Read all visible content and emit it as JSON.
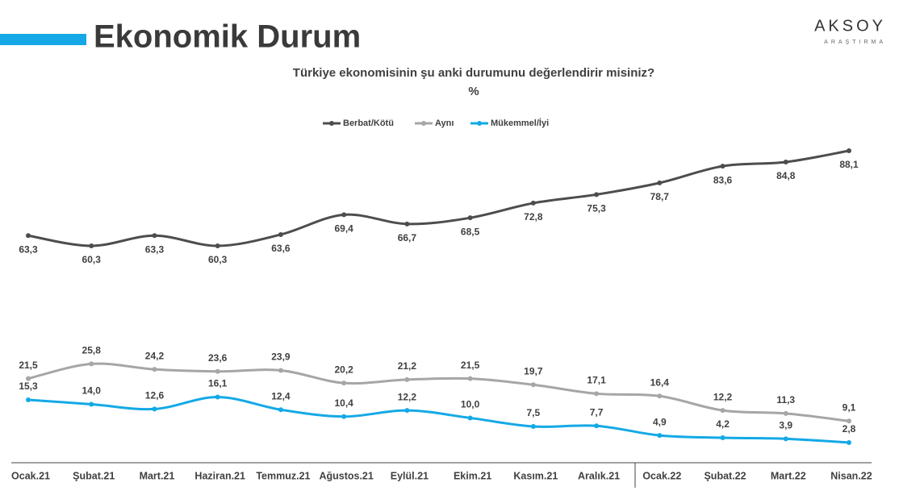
{
  "header": {
    "title": "Ekonomik Durum",
    "logo": "AKSOY",
    "logo_sub": "ARAŞTIRMA"
  },
  "chart_data": {
    "type": "line",
    "title": "Türkiye ekonomisinin şu anki durumunu değerlendirir misiniz?",
    "subtitle": "%",
    "categories": [
      "Ocak.21",
      "Şubat.21",
      "Mart.21",
      "Haziran.21",
      "Temmuz.21",
      "Ağustos.21",
      "Eylül.21",
      "Ekim.21",
      "Kasım.21",
      "Aralık.21",
      "Ocak.22",
      "Şubat.22",
      "Mart.22",
      "Nisan.22"
    ],
    "series": [
      {
        "name": "Berbat/Kötü",
        "color": "#4d4d4d",
        "values": [
          63.3,
          60.3,
          63.3,
          60.3,
          63.6,
          69.4,
          66.7,
          68.5,
          72.8,
          75.3,
          78.7,
          83.6,
          84.8,
          88.1
        ],
        "value_labels": [
          "63,3",
          "60,3",
          "63,3",
          "60,3",
          "63,6",
          "69,4",
          "66,7",
          "68,5",
          "72,8",
          "75,3",
          "78,7",
          "83,6",
          "84,8",
          "88,1"
        ]
      },
      {
        "name": "Aynı",
        "color": "#a6a6a6",
        "values": [
          21.5,
          25.8,
          24.2,
          23.6,
          23.9,
          20.2,
          21.2,
          21.5,
          19.7,
          17.1,
          16.4,
          12.2,
          11.3,
          9.1
        ],
        "value_labels": [
          "21,5",
          "25,8",
          "24,2",
          "23,6",
          "23,9",
          "20,2",
          "21,2",
          "21,5",
          "19,7",
          "17,1",
          "16,4",
          "12,2",
          "11,3",
          "9,1"
        ]
      },
      {
        "name": "Mükemmel/İyi",
        "color": "#14a9e6",
        "values": [
          15.3,
          14.0,
          12.6,
          16.1,
          12.4,
          10.4,
          12.2,
          10.0,
          7.5,
          7.7,
          4.9,
          4.2,
          3.9,
          2.8
        ],
        "value_labels": [
          "15,3",
          "14,0",
          "12,6",
          "16,1",
          "12,4",
          "10,4",
          "12,2",
          "10,0",
          "7,5",
          "7,7",
          "4,9",
          "4,2",
          "3,9",
          "2,8"
        ]
      }
    ]
  }
}
